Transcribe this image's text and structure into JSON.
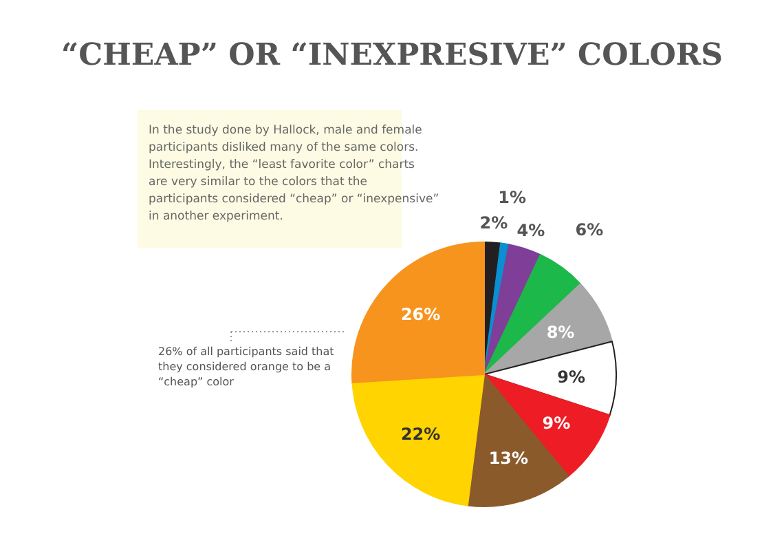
{
  "chart_data": {
    "type": "pie",
    "title": "“CHEAP” OR “INEXPRESIVE” COLORS",
    "categories": [
      null,
      null,
      null,
      null,
      null,
      null,
      null,
      null,
      null,
      null
    ],
    "values": [
      2,
      1,
      4,
      6,
      8,
      9,
      9,
      13,
      22,
      26
    ],
    "value_labels": [
      "2%",
      "1%",
      "4%",
      "6%",
      "8%",
      "9%",
      "9%",
      "13%",
      "22%",
      "26%"
    ],
    "colors": [
      "#231f20",
      "#0a8fd0",
      "#7f3f98",
      "#1db84a",
      "#a7a7a7",
      "#ffffff",
      "#ee1c25",
      "#8b5a2b",
      "#ffd400",
      "#f7941d"
    ],
    "annotations": [
      "In the study done by Hallock, male and female participants disliked many of the same colors. Interestingly, the “least favorite color” charts are very similar to the colors that the participants considered “cheap” or “inexpensive” in another experiment.",
      "26% of all participants said that they considered orange to be a “cheap” color"
    ]
  }
}
